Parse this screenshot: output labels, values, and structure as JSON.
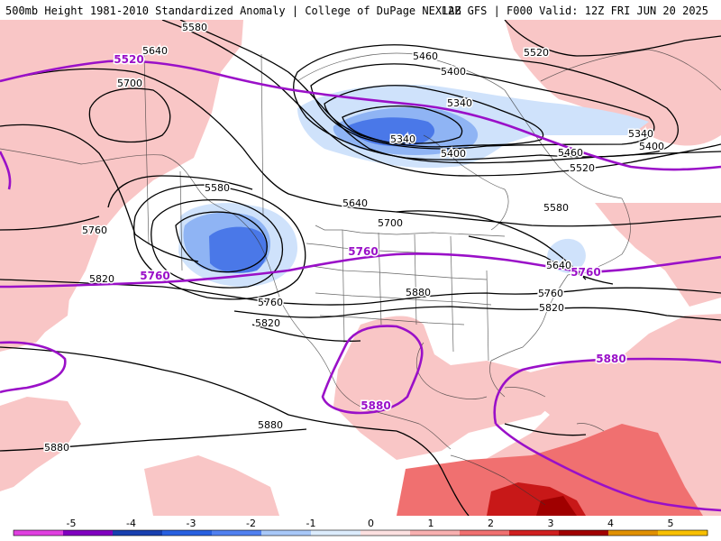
{
  "header": {
    "left_title": "500mb Height 1981-2010 Standardized Anomaly | College of DuPage NEXLAB",
    "right_title": "12Z GFS | F000 Valid: 12Z FRI JUN 20 2025"
  },
  "contour_labels": [
    {
      "text": "5580",
      "kind": "black"
    },
    {
      "text": "5520",
      "kind": "black"
    },
    {
      "text": "5640",
      "kind": "black"
    },
    {
      "text": "5700",
      "kind": "black"
    },
    {
      "text": "5460",
      "kind": "black"
    },
    {
      "text": "5400",
      "kind": "black"
    },
    {
      "text": "5340",
      "kind": "black"
    },
    {
      "text": "5340",
      "kind": "black"
    },
    {
      "text": "5400",
      "kind": "black"
    },
    {
      "text": "5340",
      "kind": "black"
    },
    {
      "text": "5400",
      "kind": "black"
    },
    {
      "text": "5460",
      "kind": "black"
    },
    {
      "text": "5520",
      "kind": "black"
    },
    {
      "text": "5580",
      "kind": "black"
    },
    {
      "text": "5580",
      "kind": "black"
    },
    {
      "text": "5640",
      "kind": "black"
    },
    {
      "text": "5700",
      "kind": "black"
    },
    {
      "text": "5760",
      "kind": "black"
    },
    {
      "text": "5820",
      "kind": "black"
    },
    {
      "text": "5760",
      "kind": "black"
    },
    {
      "text": "5820",
      "kind": "black"
    },
    {
      "text": "5880",
      "kind": "black"
    },
    {
      "text": "5880",
      "kind": "black"
    },
    {
      "text": "5880",
      "kind": "black"
    },
    {
      "text": "5640",
      "kind": "black"
    },
    {
      "text": "5760",
      "kind": "black"
    },
    {
      "text": "5820",
      "kind": "black"
    },
    {
      "text": "5520",
      "kind": "purple"
    },
    {
      "text": "5760",
      "kind": "purple"
    },
    {
      "text": "5760",
      "kind": "purple"
    },
    {
      "text": "5760",
      "kind": "purple"
    },
    {
      "text": "5880",
      "kind": "purple"
    },
    {
      "text": "5880",
      "kind": "purple"
    }
  ],
  "colorbar": {
    "ticks": [
      "-5",
      "-4",
      "-3",
      "-2",
      "-1",
      "0",
      "1",
      "2",
      "3",
      "4",
      "5"
    ],
    "colors": [
      "#e040e0",
      "#8000c0",
      "#1840b0",
      "#2860e0",
      "#5080f0",
      "#a8c8f8",
      "#dcecfc",
      "#fce0e0",
      "#f8b0b0",
      "#f07070",
      "#d02020",
      "#a00000",
      "#e09000",
      "#f8c000"
    ]
  }
}
